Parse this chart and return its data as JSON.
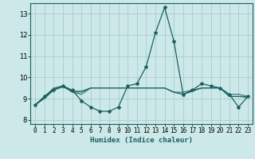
{
  "title": "",
  "xlabel": "Humidex (Indice chaleur)",
  "ylabel": "",
  "bg_color": "#cce8e8",
  "grid_color": "#aacccc",
  "line_color": "#1a6060",
  "xlim": [
    -0.5,
    23.5
  ],
  "ylim": [
    7.8,
    13.5
  ],
  "yticks": [
    8,
    9,
    10,
    11,
    12,
    13
  ],
  "xticks": [
    0,
    1,
    2,
    3,
    4,
    5,
    6,
    7,
    8,
    9,
    10,
    11,
    12,
    13,
    14,
    15,
    16,
    17,
    18,
    19,
    20,
    21,
    22,
    23
  ],
  "series": [
    [
      8.7,
      9.1,
      9.4,
      9.6,
      9.4,
      8.9,
      8.6,
      8.4,
      8.4,
      8.6,
      9.6,
      9.7,
      10.5,
      12.1,
      13.3,
      11.7,
      9.2,
      9.4,
      9.7,
      9.6,
      9.5,
      9.2,
      8.6,
      9.1
    ],
    [
      8.7,
      9.1,
      9.5,
      9.6,
      9.3,
      9.2,
      9.5,
      9.5,
      9.5,
      9.5,
      9.5,
      9.5,
      9.5,
      9.5,
      9.5,
      9.3,
      9.3,
      9.4,
      9.5,
      9.5,
      9.5,
      9.2,
      9.2,
      9.1
    ],
    [
      8.7,
      9.0,
      9.4,
      9.55,
      9.35,
      9.35,
      9.5,
      9.5,
      9.5,
      9.5,
      9.5,
      9.5,
      9.5,
      9.5,
      9.5,
      9.3,
      9.2,
      9.35,
      9.5,
      9.5,
      9.5,
      9.1,
      9.1,
      9.05
    ],
    [
      8.7,
      9.05,
      9.45,
      9.57,
      9.32,
      9.3,
      9.5,
      9.5,
      9.5,
      9.5,
      9.5,
      9.5,
      9.5,
      9.5,
      9.5,
      9.3,
      9.2,
      9.35,
      9.5,
      9.5,
      9.5,
      9.1,
      9.1,
      9.1
    ]
  ],
  "xlabel_fontsize": 6.5,
  "tick_fontsize": 5.5
}
